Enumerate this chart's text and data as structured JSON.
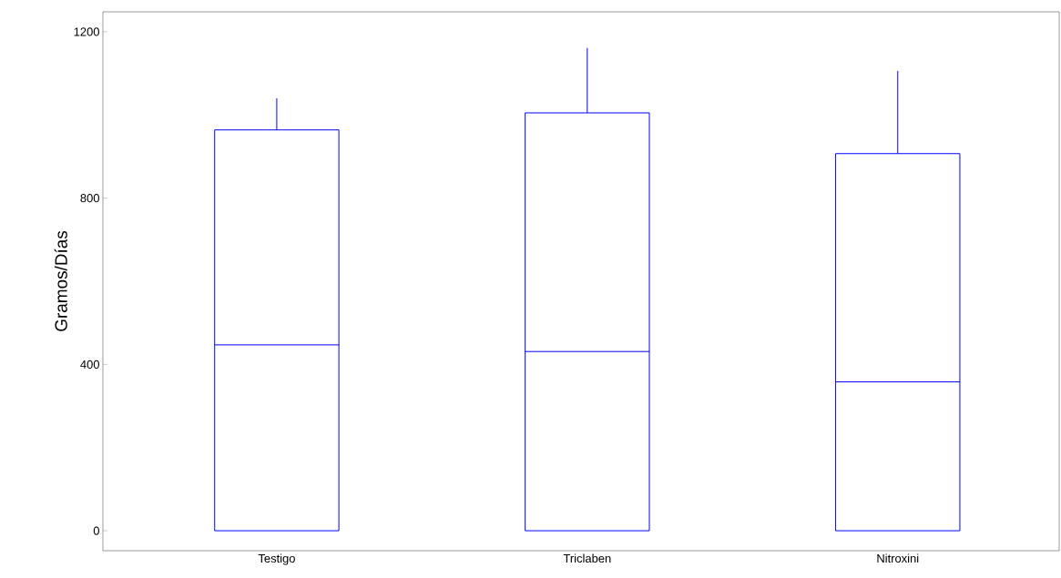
{
  "chart_data": {
    "type": "box",
    "ylabel": "Gramos/Días",
    "categories": [
      "Testigo",
      "Triclaben",
      "Nitroxini"
    ],
    "color": "#0000ff",
    "boxes": [
      {
        "low": 0,
        "q1": 0,
        "median": 447,
        "q3": 964,
        "high": 1040
      },
      {
        "low": 0,
        "q1": 0,
        "median": 431,
        "q3": 1005,
        "high": 1161
      },
      {
        "low": 0,
        "q1": 0,
        "median": 358,
        "q3": 907,
        "high": 1106
      }
    ],
    "ylim": [
      -48,
      1248
    ],
    "yticks": [
      0,
      400,
      800,
      1200
    ],
    "grid": false
  }
}
